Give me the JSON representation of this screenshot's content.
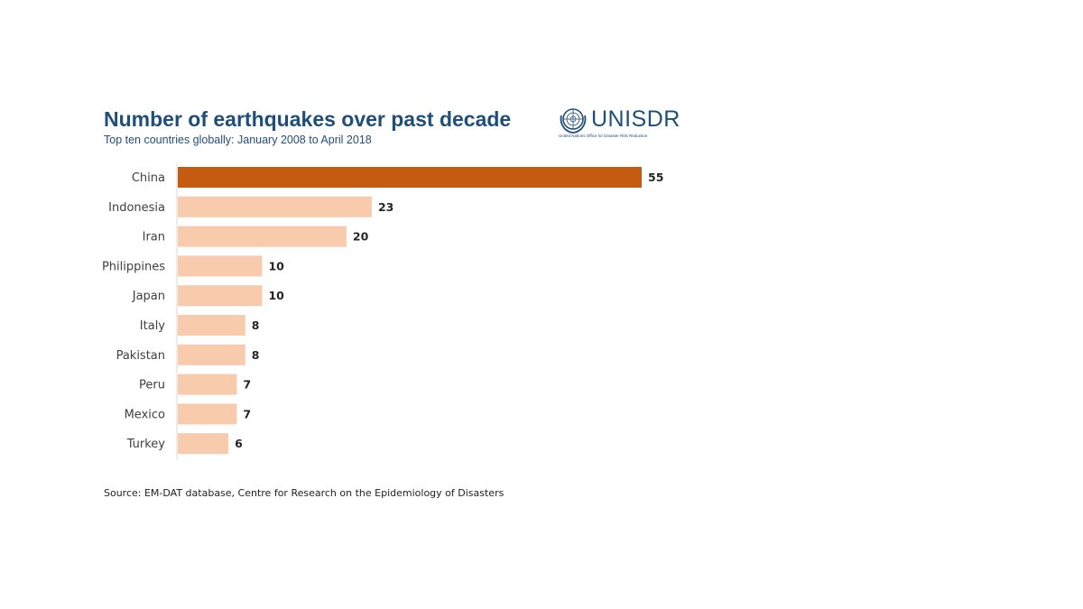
{
  "header": {
    "title": "Number of earthquakes over past decade",
    "subtitle": "Top ten countries globally: January 2008 to April 2018"
  },
  "logo": {
    "name": "UNISDR",
    "tagline": "United Nations Office for Disaster Risk Reduction",
    "color": "#1f4e79"
  },
  "chart_data": {
    "type": "bar",
    "orientation": "horizontal",
    "title": "Number of earthquakes over past decade",
    "subtitle": "Top ten countries globally: January 2008 to April 2018",
    "categories": [
      "China",
      "Indonesia",
      "Iran",
      "Philippines",
      "Japan",
      "Italy",
      "Pakistan",
      "Peru",
      "Mexico",
      "Turkey"
    ],
    "values": [
      55,
      23,
      20,
      10,
      10,
      8,
      8,
      7,
      7,
      6
    ],
    "value_labels": [
      "55",
      "23",
      "20",
      "10",
      "10",
      "8",
      "8",
      "7",
      "7",
      "6"
    ],
    "xlim": [
      0,
      55
    ],
    "grid": false,
    "legend": "none",
    "highlight_color": "#c55a11",
    "bar_color": "#f8cbad"
  },
  "footer": {
    "source": "Source: EM-DAT database, Centre for Research on the Epidemiology of Disasters"
  }
}
